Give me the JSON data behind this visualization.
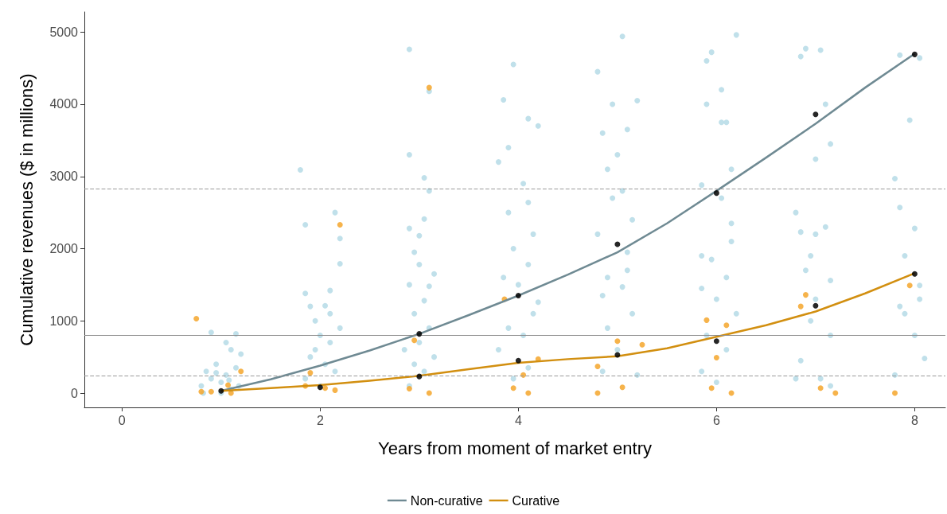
{
  "chart_data": {
    "type": "scatter",
    "xlabel": "Years from moment of market entry",
    "ylabel": "Cumulative revenues ($ in millions)",
    "xlim": [
      -0.38,
      8.31
    ],
    "xticks": [
      0,
      2,
      4,
      6,
      8
    ],
    "ylim": [
      -198,
      5278
    ],
    "yticks": [
      0,
      1000,
      2000,
      3000,
      4000,
      5000
    ],
    "grid": false,
    "legend": "bottom",
    "ref_lines": [
      {
        "axis": "y",
        "value": 2830,
        "label": null,
        "color": "#9a9a9a",
        "line_style": "dashed"
      },
      {
        "axis": "y",
        "value": 800,
        "label": null,
        "color": "#8c8c8c",
        "line_style": "solid"
      },
      {
        "axis": "y",
        "value": 240,
        "label": null,
        "color": "#9a9a9a",
        "line_style": "dashed"
      }
    ],
    "series": [
      {
        "type": "scatter",
        "marker": "circle",
        "color": "#b5dbe6",
        "x": [
          0.8,
          0.85,
          0.9,
          0.95,
          1,
          1.05,
          1.1,
          1.15,
          0.9,
          1.15,
          1.05,
          1.1,
          1.2,
          0.82,
          1.0,
          1.18,
          0.95,
          1.08,
          1.8,
          1.85,
          1.9,
          2.05,
          2.15,
          1.85,
          2.2,
          2.2,
          2.1,
          1.95,
          2.0,
          2.1,
          1.9,
          2.05,
          2.15,
          1.85,
          2.0,
          1.95,
          2.2,
          2.1,
          2.9,
          3.1,
          2.9,
          3.05,
          3.1,
          2.9,
          3.05,
          2.95,
          3.0,
          3.1,
          2.9,
          3.05,
          2.95,
          3.1,
          3.0,
          2.85,
          3.15,
          2.95,
          3.05,
          2.9,
          3.15,
          3.0,
          3.95,
          3.85,
          4.1,
          4.2,
          3.8,
          3.9,
          4.05,
          4.1,
          3.9,
          4.15,
          3.95,
          4.1,
          3.85,
          4.0,
          4.15,
          3.9,
          4.05,
          3.8,
          4.1,
          3.95,
          4.2,
          5.05,
          4.8,
          5.2,
          4.95,
          5.1,
          4.85,
          5.0,
          4.9,
          5.05,
          4.95,
          5.15,
          4.8,
          5.1,
          4.9,
          5.05,
          4.85,
          5.15,
          4.9,
          5.0,
          4.85,
          5.2,
          5.1,
          6.2,
          5.95,
          5.9,
          6.05,
          5.9,
          6.05,
          6.1,
          6.15,
          5.85,
          6.05,
          6.15,
          5.85,
          5.95,
          6.1,
          5.85,
          6.0,
          6.2,
          5.9,
          6.1,
          5.85,
          6.0,
          6.15,
          6.9,
          7.05,
          6.85,
          7.1,
          7.0,
          7.15,
          6.8,
          6.85,
          7.0,
          7.1,
          6.95,
          7.15,
          6.9,
          7.0,
          7.15,
          6.85,
          7.05,
          6.8,
          7.15,
          6.95,
          7.85,
          8.05,
          7.95,
          7.8,
          7.85,
          8.0,
          7.9,
          8.05,
          7.85,
          7.9,
          8.0,
          8.1,
          7.8,
          8.05
        ],
        "values": [
          100,
          300,
          200,
          400,
          150,
          250,
          50,
          350,
          840,
          820,
          700,
          600,
          540,
          0,
          0,
          100,
          280,
          180,
          3090,
          1380,
          1200,
          1210,
          2500,
          2330,
          2140,
          1790,
          1420,
          1000,
          800,
          700,
          500,
          400,
          300,
          200,
          100,
          600,
          900,
          1100,
          4760,
          4180,
          3300,
          2980,
          2800,
          2280,
          2410,
          1950,
          1780,
          1480,
          1500,
          1280,
          1100,
          900,
          700,
          600,
          500,
          400,
          300,
          100,
          1650,
          2180,
          4550,
          4060,
          3800,
          3700,
          3200,
          3400,
          2900,
          2640,
          2500,
          2200,
          2000,
          1780,
          1600,
          1500,
          1100,
          900,
          800,
          600,
          350,
          200,
          1260,
          4940,
          4450,
          4050,
          4000,
          3650,
          3600,
          3300,
          3100,
          2800,
          2700,
          2400,
          2200,
          1950,
          1600,
          1470,
          1350,
          1100,
          900,
          600,
          300,
          250,
          1700,
          4960,
          4720,
          4600,
          4200,
          4000,
          3750,
          3750,
          3100,
          2880,
          2700,
          2350,
          1900,
          1850,
          1600,
          1450,
          1300,
          1100,
          800,
          600,
          300,
          150,
          2100,
          4770,
          4750,
          4660,
          4000,
          3240,
          3450,
          2500,
          2230,
          2200,
          2300,
          1900,
          1560,
          1700,
          1300,
          800,
          450,
          200,
          200,
          100,
          1000,
          4680,
          4640,
          3780,
          2970,
          2570,
          2280,
          1900,
          1490,
          1200,
          1100,
          800,
          480,
          250,
          1300
        ]
      },
      {
        "type": "scatter",
        "marker": "circle",
        "color": "#f5a62c",
        "x": [
          0.75,
          0.8,
          0.9,
          1.1,
          1.2,
          1.07,
          1.85,
          1.9,
          2.05,
          2.2,
          2.15,
          2.9,
          2.95,
          3.1,
          3.1,
          3.86,
          3.95,
          4.05,
          4.1,
          4.2,
          4.8,
          4.8,
          5,
          5.05,
          5.25,
          5.9,
          5.95,
          6,
          6.1,
          6.15,
          6.9,
          6.85,
          7.05,
          7.2,
          7.8,
          7.95
        ],
        "values": [
          1030,
          20,
          20,
          0,
          300,
          110,
          100,
          280,
          70,
          2330,
          40,
          60,
          730,
          4230,
          0,
          1300,
          70,
          250,
          0,
          470,
          370,
          0,
          720,
          80,
          670,
          1010,
          70,
          490,
          940,
          0,
          1360,
          1200,
          70,
          0,
          0,
          1490
        ]
      },
      {
        "type": "line",
        "name": "Non-curative",
        "marker": "none",
        "color": "#6f8a93",
        "x": [
          1,
          1.5,
          2,
          2.5,
          3,
          3.5,
          4,
          4.5,
          5,
          5.5,
          6,
          6.5,
          7,
          7.5,
          8
        ],
        "values": [
          30,
          190,
          380,
          590,
          820,
          1080,
          1350,
          1640,
          1950,
          2350,
          2800,
          3260,
          3730,
          4230,
          4700
        ]
      },
      {
        "type": "line",
        "name": "Curative",
        "marker": "none",
        "color": "#d28f10",
        "x": [
          1,
          1.5,
          2,
          2.5,
          3,
          3.5,
          4,
          4.5,
          5,
          5.5,
          6,
          6.5,
          7,
          7.5,
          8
        ],
        "values": [
          30,
          70,
          110,
          170,
          240,
          330,
          420,
          470,
          510,
          620,
          780,
          940,
          1130,
          1380,
          1660
        ]
      },
      {
        "type": "scatter",
        "marker": "circle",
        "color": "#000000",
        "x": [
          1,
          2,
          3,
          3,
          4,
          4,
          5,
          5,
          6,
          6,
          7,
          7,
          8,
          8
        ],
        "values": [
          30,
          80,
          230,
          820,
          1350,
          450,
          2060,
          530,
          2770,
          720,
          3860,
          1210,
          4690,
          1650
        ]
      }
    ]
  }
}
